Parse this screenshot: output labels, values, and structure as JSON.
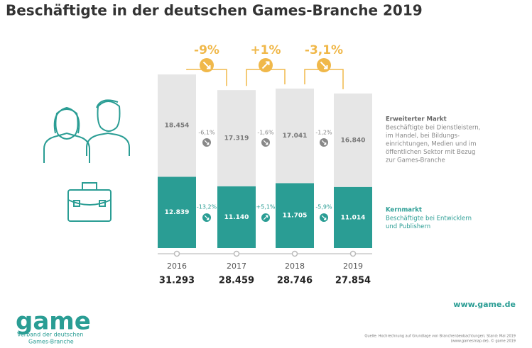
{
  "chart_data": {
    "type": "stacked_bar",
    "title": "Beschäftigte in der deutschen Games-Branche 2019",
    "categories": [
      "2016",
      "2017",
      "2018",
      "2019"
    ],
    "series": [
      {
        "name": "Kernmarkt",
        "color": "#2a9d94",
        "label_color": "#ffffff",
        "description": [
          "Beschäftigte bei Entwicklern",
          "und Publishern"
        ],
        "values": [
          12839,
          11140,
          11705,
          11014
        ],
        "value_labels": [
          "12.839",
          "11.140",
          "11.705",
          "11.014"
        ],
        "changes": [
          "-13,2%",
          "+5,1%",
          "-5,9%"
        ]
      },
      {
        "name": "Erweiterter Markt",
        "color": "#e6e6e6",
        "label_color": "#777777",
        "description": [
          "Beschäftigte bei Dienstleistern,",
          "im Handel, bei Bildungs-",
          "einrichtungen, Medien und im",
          "öffentlichen Sektor mit Bezug",
          "zur Games-Branche"
        ],
        "values": [
          18454,
          17319,
          17041,
          16840
        ],
        "value_labels": [
          "18.454",
          "17.319",
          "17.041",
          "16.840"
        ],
        "changes": [
          "-6,1%",
          "-1,6%",
          "-1,2%"
        ]
      }
    ],
    "totals": {
      "values": [
        31293,
        28459,
        28746,
        27854
      ],
      "value_labels": [
        "31.293",
        "28.459",
        "28.746",
        "27.854"
      ]
    },
    "total_changes": [
      "-9%",
      "+1%",
      "-3,1%"
    ],
    "change_color": "#f0b84a"
  },
  "footer": {
    "logo": "game",
    "org": [
      "Verband der deutschen",
      "Games-Branche"
    ],
    "url": "www.game.de",
    "source": [
      "Quelle: Hochrechnung auf Grundlage von Branchenbeobachtungen; Stand: Mai 2019",
      "(www.gamesmap.de), © game 2019"
    ]
  }
}
